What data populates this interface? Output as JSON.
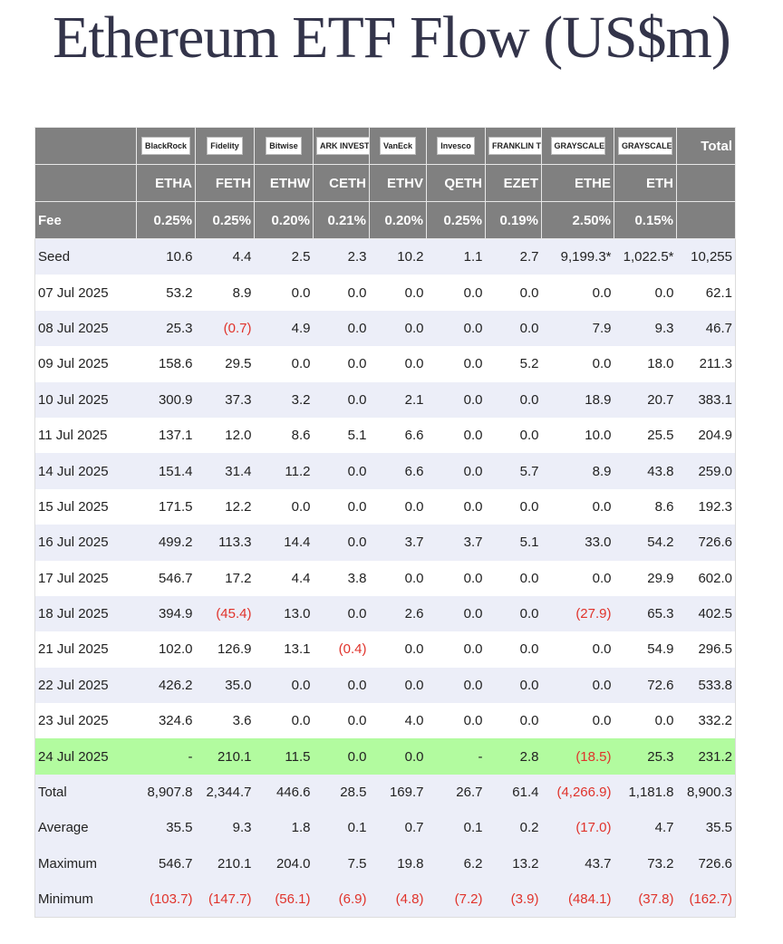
{
  "title": "Ethereum ETF Flow (US$m)",
  "table": {
    "issuers": [
      "BlackRock",
      "Fidelity",
      "Bitwise",
      "ARK INVEST",
      "VanEck",
      "Invesco",
      "FRANKLIN TEMPLETON",
      "GRAYSCALE",
      "GRAYSCALE"
    ],
    "total_header": "Total",
    "tickers": [
      "ETHA",
      "FETH",
      "ETHW",
      "CETH",
      "ETHV",
      "QETH",
      "EZET",
      "ETHE",
      "ETH"
    ],
    "fee_label": "Fee",
    "fees": [
      "0.25%",
      "0.25%",
      "0.20%",
      "0.21%",
      "0.20%",
      "0.25%",
      "0.19%",
      "2.50%",
      "0.15%"
    ],
    "rows": [
      [
        "Seed",
        "10.6",
        "4.4",
        "2.5",
        "2.3",
        "10.2",
        "1.1",
        "2.7",
        "9,199.3*",
        "1,022.5*",
        "10,255"
      ],
      [
        "07 Jul 2025",
        "53.2",
        "8.9",
        "0.0",
        "0.0",
        "0.0",
        "0.0",
        "0.0",
        "0.0",
        "0.0",
        "62.1"
      ],
      [
        "08 Jul 2025",
        "25.3",
        "(0.7)",
        "4.9",
        "0.0",
        "0.0",
        "0.0",
        "0.0",
        "7.9",
        "9.3",
        "46.7"
      ],
      [
        "09 Jul 2025",
        "158.6",
        "29.5",
        "0.0",
        "0.0",
        "0.0",
        "0.0",
        "5.2",
        "0.0",
        "18.0",
        "211.3"
      ],
      [
        "10 Jul 2025",
        "300.9",
        "37.3",
        "3.2",
        "0.0",
        "2.1",
        "0.0",
        "0.0",
        "18.9",
        "20.7",
        "383.1"
      ],
      [
        "11 Jul 2025",
        "137.1",
        "12.0",
        "8.6",
        "5.1",
        "6.6",
        "0.0",
        "0.0",
        "10.0",
        "25.5",
        "204.9"
      ],
      [
        "14 Jul 2025",
        "151.4",
        "31.4",
        "11.2",
        "0.0",
        "6.6",
        "0.0",
        "5.7",
        "8.9",
        "43.8",
        "259.0"
      ],
      [
        "15 Jul 2025",
        "171.5",
        "12.2",
        "0.0",
        "0.0",
        "0.0",
        "0.0",
        "0.0",
        "0.0",
        "8.6",
        "192.3"
      ],
      [
        "16 Jul 2025",
        "499.2",
        "113.3",
        "14.4",
        "0.0",
        "3.7",
        "3.7",
        "5.1",
        "33.0",
        "54.2",
        "726.6"
      ],
      [
        "17 Jul 2025",
        "546.7",
        "17.2",
        "4.4",
        "3.8",
        "0.0",
        "0.0",
        "0.0",
        "0.0",
        "29.9",
        "602.0"
      ],
      [
        "18 Jul 2025",
        "394.9",
        "(45.4)",
        "13.0",
        "0.0",
        "2.6",
        "0.0",
        "0.0",
        "(27.9)",
        "65.3",
        "402.5"
      ],
      [
        "21 Jul 2025",
        "102.0",
        "126.9",
        "13.1",
        "(0.4)",
        "0.0",
        "0.0",
        "0.0",
        "0.0",
        "54.9",
        "296.5"
      ],
      [
        "22 Jul 2025",
        "426.2",
        "35.0",
        "0.0",
        "0.0",
        "0.0",
        "0.0",
        "0.0",
        "0.0",
        "72.6",
        "533.8"
      ],
      [
        "23 Jul 2025",
        "324.6",
        "3.6",
        "0.0",
        "0.0",
        "4.0",
        "0.0",
        "0.0",
        "0.0",
        "0.0",
        "332.2"
      ],
      [
        "24 Jul 2025",
        "-",
        "210.1",
        "11.5",
        "0.0",
        "0.0",
        "-",
        "2.8",
        "(18.5)",
        "25.3",
        "231.2"
      ],
      [
        "Total",
        "8,907.8",
        "2,344.7",
        "446.6",
        "28.5",
        "169.7",
        "26.7",
        "61.4",
        "(4,266.9)",
        "1,181.8",
        "8,900.3"
      ],
      [
        "Average",
        "35.5",
        "9.3",
        "1.8",
        "0.1",
        "0.7",
        "0.1",
        "0.2",
        "(17.0)",
        "4.7",
        "35.5"
      ],
      [
        "Maximum",
        "546.7",
        "210.1",
        "204.0",
        "7.5",
        "19.8",
        "6.2",
        "13.2",
        "43.7",
        "73.2",
        "726.6"
      ],
      [
        "Minimum",
        "(103.7)",
        "(147.7)",
        "(56.1)",
        "(6.9)",
        "(4.8)",
        "(7.2)",
        "(3.9)",
        "(484.1)",
        "(37.8)",
        "(162.7)"
      ]
    ]
  }
}
